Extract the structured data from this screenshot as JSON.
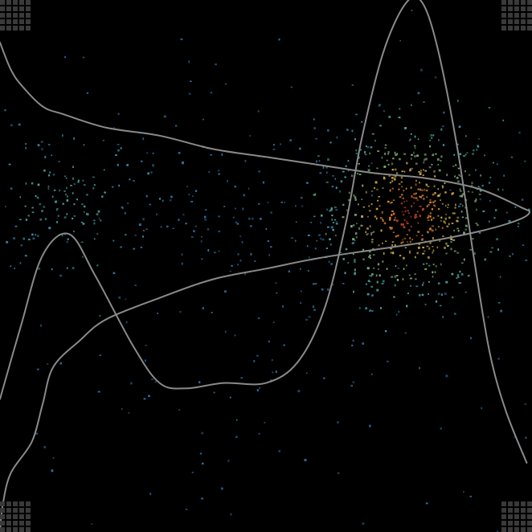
{
  "chart_data": {
    "type": "scatter",
    "title": "",
    "xlabel": "",
    "ylabel": "",
    "xlim": [
      0,
      1
    ],
    "ylim": [
      0,
      1
    ],
    "grid": false,
    "legend": "none",
    "axes_visible": false,
    "background": "#000000",
    "curve_color": "#8a8a8a",
    "point_palette": [
      "#2e6f9e",
      "#3b8fa8",
      "#4aa39a",
      "#7fae7a",
      "#c9a94a",
      "#d8832f",
      "#c2452a"
    ],
    "clusters": [
      {
        "center": [
          0.77,
          0.6
        ],
        "spread": [
          0.085,
          0.085
        ],
        "count": 650,
        "peak_density": "high"
      },
      {
        "center": [
          0.12,
          0.63
        ],
        "spread": [
          0.09,
          0.06
        ],
        "count": 160,
        "peak_density": "medium"
      },
      {
        "center": [
          0.45,
          0.58
        ],
        "spread": [
          0.12,
          0.07
        ],
        "count": 90,
        "peak_density": "low"
      },
      {
        "center": [
          0.5,
          0.45
        ],
        "spread": [
          0.38,
          0.3
        ],
        "count": 260,
        "peak_density": "background"
      }
    ],
    "curves": [
      {
        "kind": "density-x",
        "points": [
          [
            0.0,
            0.25
          ],
          [
            0.04,
            0.39
          ],
          [
            0.08,
            0.52
          ],
          [
            0.13,
            0.56
          ],
          [
            0.18,
            0.48
          ],
          [
            0.25,
            0.35
          ],
          [
            0.3,
            0.28
          ],
          [
            0.35,
            0.27
          ],
          [
            0.42,
            0.28
          ],
          [
            0.5,
            0.28
          ],
          [
            0.56,
            0.32
          ],
          [
            0.61,
            0.42
          ],
          [
            0.65,
            0.58
          ],
          [
            0.68,
            0.74
          ],
          [
            0.72,
            0.9
          ],
          [
            0.76,
            0.99
          ],
          [
            0.79,
            1.0
          ],
          [
            0.82,
            0.92
          ],
          [
            0.86,
            0.72
          ],
          [
            0.89,
            0.52
          ],
          [
            0.92,
            0.34
          ],
          [
            0.95,
            0.23
          ],
          [
            0.99,
            0.13
          ]
        ]
      },
      {
        "kind": "density-y",
        "points": [
          [
            0.0,
            0.92
          ],
          [
            0.02,
            0.87
          ],
          [
            0.04,
            0.84
          ],
          [
            0.08,
            0.8
          ],
          [
            0.12,
            0.785
          ],
          [
            0.2,
            0.76
          ],
          [
            0.3,
            0.745
          ],
          [
            0.4,
            0.72
          ],
          [
            0.5,
            0.705
          ],
          [
            0.6,
            0.69
          ],
          [
            0.7,
            0.675
          ],
          [
            0.8,
            0.665
          ],
          [
            0.9,
            0.645
          ],
          [
            0.98,
            0.61
          ],
          [
            0.995,
            0.6
          ],
          [
            0.97,
            0.585
          ],
          [
            0.9,
            0.565
          ],
          [
            0.8,
            0.545
          ],
          [
            0.7,
            0.53
          ],
          [
            0.6,
            0.515
          ],
          [
            0.5,
            0.495
          ],
          [
            0.4,
            0.475
          ],
          [
            0.3,
            0.44
          ],
          [
            0.2,
            0.4
          ],
          [
            0.15,
            0.36
          ],
          [
            0.1,
            0.31
          ],
          [
            0.08,
            0.24
          ],
          [
            0.06,
            0.17
          ],
          [
            0.02,
            0.11
          ],
          [
            0.005,
            0.05
          ],
          [
            0.0,
            0.0
          ]
        ]
      }
    ]
  }
}
